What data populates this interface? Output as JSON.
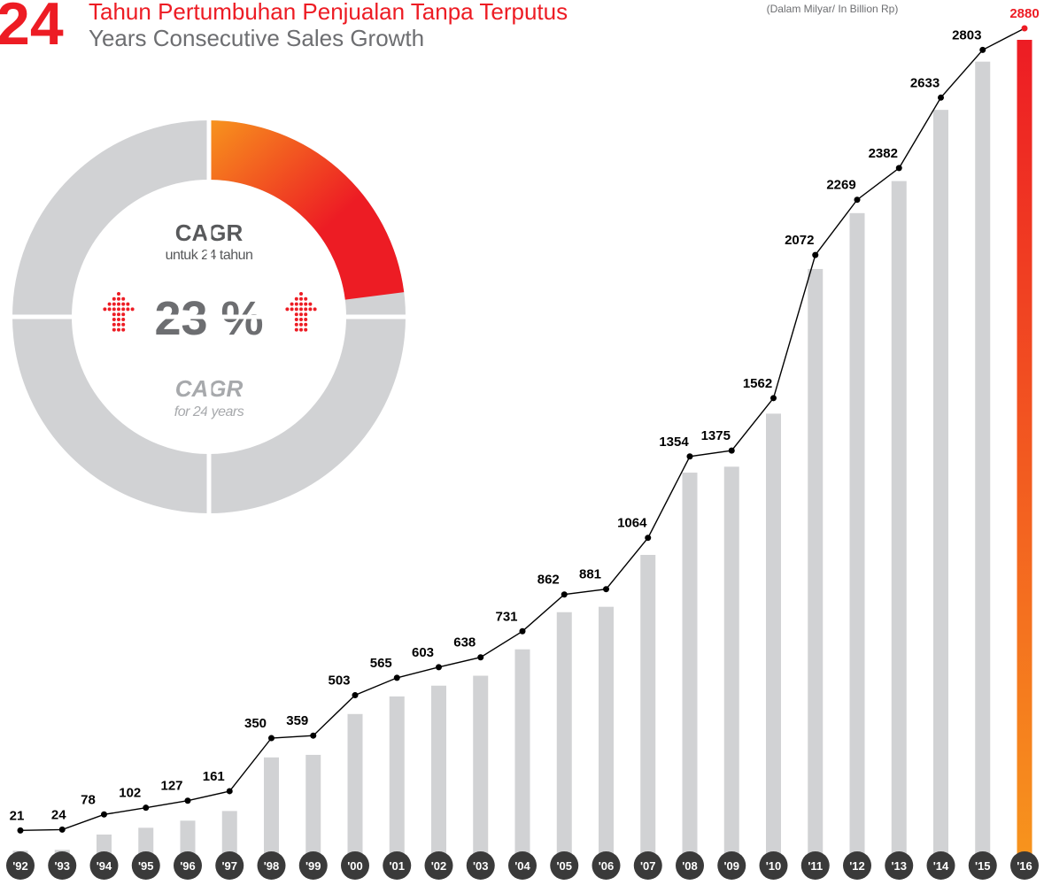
{
  "header": {
    "number": "24",
    "title": "Tahun Pertumbuhan Penjualan Tanpa Terputus",
    "subtitle": "Years Consecutive Sales Growth",
    "note": "(Dalam Milyar/ In Billion Rp)"
  },
  "chart_data": [
    {
      "type": "bar",
      "line_overlay": true,
      "categories": [
        "'92",
        "'93",
        "'94",
        "'95",
        "'96",
        "'97",
        "'98",
        "'99",
        "'00",
        "'01",
        "'02",
        "'03",
        "'04",
        "'05",
        "'06",
        "'07",
        "'08",
        "'09",
        "'10",
        "'11",
        "'12",
        "'13",
        "'14",
        "'15",
        "'16"
      ],
      "values": [
        21,
        24,
        78,
        102,
        127,
        161,
        350,
        359,
        503,
        565,
        603,
        638,
        731,
        862,
        881,
        1064,
        1354,
        1375,
        1562,
        2072,
        2269,
        2382,
        2633,
        2803,
        2880
      ],
      "color": "#d1d2d4",
      "highlight_colors": [
        "#ed1c24",
        "#f7941d"
      ],
      "line_color": "#000000",
      "label_highlight_color": "#ed1c24"
    },
    {
      "type": "donut",
      "values": [
        23
      ],
      "value_labels": [
        "23 %"
      ],
      "colors": [
        "#f7941d",
        "#ed1c24"
      ],
      "rest_color": "#d1d2d4",
      "label_top": "CAGR",
      "sub_top": "untuk 24 tahun",
      "label_bottom": "CAGR",
      "sub_bottom": "for 24 years"
    }
  ]
}
